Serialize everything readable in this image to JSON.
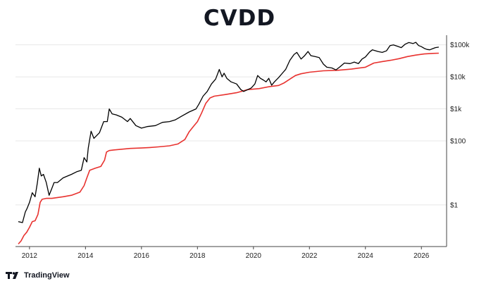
{
  "header": {
    "title": "CVDD"
  },
  "brand": {
    "name": "TradingView"
  },
  "colors": {
    "price": "#000000",
    "cvdd": "#e8322f",
    "grid": "#e8e8e8"
  },
  "chart_data": {
    "type": "line",
    "title": "CVDD",
    "xlabel": "",
    "ylabel": "",
    "y_scale": "log",
    "xlim": [
      2011.5,
      2026.9
    ],
    "ylim": [
      0.05,
      200000
    ],
    "grid": true,
    "y_ticks": [
      {
        "value": 100000,
        "label": "$100k"
      },
      {
        "value": 10000,
        "label": "$10k"
      },
      {
        "value": 1000,
        "label": "$1k"
      },
      {
        "value": 100,
        "label": "$100"
      },
      {
        "value": 1,
        "label": "$1"
      }
    ],
    "x_ticks": [
      {
        "value": 2012,
        "label": "2012"
      },
      {
        "value": 2014,
        "label": "2014"
      },
      {
        "value": 2016,
        "label": "2016"
      },
      {
        "value": 2018,
        "label": "2018"
      },
      {
        "value": 2020,
        "label": "2020"
      },
      {
        "value": 2022,
        "label": "2022"
      },
      {
        "value": 2024,
        "label": "2024"
      },
      {
        "value": 2026,
        "label": "2026"
      }
    ],
    "series": [
      {
        "color": "#000000",
        "points": [
          [
            2011.6,
            0.3
          ],
          [
            2011.75,
            0.28
          ],
          [
            2011.85,
            0.6
          ],
          [
            2011.92,
            0.8
          ],
          [
            2012.0,
            1.2
          ],
          [
            2012.1,
            2.4
          ],
          [
            2012.2,
            1.8
          ],
          [
            2012.28,
            4.8
          ],
          [
            2012.35,
            14
          ],
          [
            2012.42,
            8
          ],
          [
            2012.5,
            9
          ],
          [
            2012.6,
            5
          ],
          [
            2012.7,
            2
          ],
          [
            2012.78,
            3
          ],
          [
            2012.88,
            5
          ],
          [
            2013.0,
            5
          ],
          [
            2013.2,
            7
          ],
          [
            2013.5,
            9
          ],
          [
            2013.7,
            11
          ],
          [
            2013.85,
            12
          ],
          [
            2013.95,
            30
          ],
          [
            2014.05,
            22
          ],
          [
            2014.1,
            60
          ],
          [
            2014.2,
            200
          ],
          [
            2014.3,
            120
          ],
          [
            2014.5,
            180
          ],
          [
            2014.65,
            400
          ],
          [
            2014.78,
            400
          ],
          [
            2014.85,
            1000
          ],
          [
            2014.95,
            700
          ],
          [
            2015.1,
            650
          ],
          [
            2015.3,
            550
          ],
          [
            2015.5,
            400
          ],
          [
            2015.6,
            500
          ],
          [
            2015.8,
            300
          ],
          [
            2016.0,
            250
          ],
          [
            2016.2,
            280
          ],
          [
            2016.5,
            300
          ],
          [
            2016.75,
            380
          ],
          [
            2017.0,
            400
          ],
          [
            2017.2,
            450
          ],
          [
            2017.45,
            600
          ],
          [
            2017.7,
            800
          ],
          [
            2017.95,
            1000
          ],
          [
            2018.05,
            1400
          ],
          [
            2018.2,
            2500
          ],
          [
            2018.35,
            3500
          ],
          [
            2018.5,
            6000
          ],
          [
            2018.65,
            8500
          ],
          [
            2018.78,
            17000
          ],
          [
            2018.88,
            10000
          ],
          [
            2018.95,
            13000
          ],
          [
            2019.05,
            9000
          ],
          [
            2019.2,
            7000
          ],
          [
            2019.4,
            6000
          ],
          [
            2019.55,
            4000
          ],
          [
            2019.65,
            3500
          ],
          [
            2019.8,
            4000
          ],
          [
            2019.92,
            4500
          ],
          [
            2020.05,
            6000
          ],
          [
            2020.15,
            11000
          ],
          [
            2020.25,
            9000
          ],
          [
            2020.35,
            8000
          ],
          [
            2020.45,
            7000
          ],
          [
            2020.55,
            9000
          ],
          [
            2020.65,
            5500
          ],
          [
            2020.75,
            7000
          ],
          [
            2020.9,
            9500
          ],
          [
            2021.0,
            12000
          ],
          [
            2021.15,
            17000
          ],
          [
            2021.3,
            33000
          ],
          [
            2021.45,
            50000
          ],
          [
            2021.55,
            58000
          ],
          [
            2021.7,
            36000
          ],
          [
            2021.82,
            45000
          ],
          [
            2021.95,
            62000
          ],
          [
            2022.05,
            46000
          ],
          [
            2022.2,
            43000
          ],
          [
            2022.35,
            40000
          ],
          [
            2022.5,
            25000
          ],
          [
            2022.62,
            20000
          ],
          [
            2022.8,
            19000
          ],
          [
            2022.95,
            16500
          ],
          [
            2023.1,
            21000
          ],
          [
            2023.25,
            27000
          ],
          [
            2023.45,
            26000
          ],
          [
            2023.6,
            29000
          ],
          [
            2023.75,
            26000
          ],
          [
            2023.88,
            36000
          ],
          [
            2024.0,
            42000
          ],
          [
            2024.15,
            60000
          ],
          [
            2024.25,
            70000
          ],
          [
            2024.45,
            62000
          ],
          [
            2024.6,
            58000
          ],
          [
            2024.75,
            65000
          ],
          [
            2024.88,
            95000
          ],
          [
            2025.0,
            100000
          ],
          [
            2025.15,
            90000
          ],
          [
            2025.28,
            82000
          ],
          [
            2025.42,
            105000
          ],
          [
            2025.55,
            118000
          ],
          [
            2025.7,
            110000
          ],
          [
            2025.8,
            120000
          ],
          [
            2025.9,
            95000
          ],
          [
            2026.0,
            88000
          ],
          [
            2026.1,
            78000
          ],
          [
            2026.2,
            72000
          ],
          [
            2026.3,
            70000
          ],
          [
            2026.4,
            76000
          ],
          [
            2026.5,
            82000
          ],
          [
            2026.62,
            85000
          ]
        ]
      },
      {
        "color": "#e8322f",
        "points": [
          [
            2011.6,
            0.06
          ],
          [
            2011.7,
            0.075
          ],
          [
            2011.8,
            0.11
          ],
          [
            2011.9,
            0.14
          ],
          [
            2012.0,
            0.2
          ],
          [
            2012.1,
            0.3
          ],
          [
            2012.2,
            0.32
          ],
          [
            2012.3,
            0.5
          ],
          [
            2012.38,
            1.2
          ],
          [
            2012.45,
            1.5
          ],
          [
            2012.6,
            1.6
          ],
          [
            2012.8,
            1.6
          ],
          [
            2013.0,
            1.7
          ],
          [
            2013.2,
            1.8
          ],
          [
            2013.5,
            2.0
          ],
          [
            2013.8,
            2.5
          ],
          [
            2013.95,
            4.0
          ],
          [
            2014.05,
            7
          ],
          [
            2014.15,
            12
          ],
          [
            2014.35,
            14
          ],
          [
            2014.55,
            16
          ],
          [
            2014.68,
            25
          ],
          [
            2014.75,
            45
          ],
          [
            2014.85,
            50
          ],
          [
            2015.0,
            52
          ],
          [
            2015.3,
            55
          ],
          [
            2015.6,
            58
          ],
          [
            2016.0,
            60
          ],
          [
            2016.3,
            62
          ],
          [
            2016.6,
            65
          ],
          [
            2017.0,
            70
          ],
          [
            2017.3,
            80
          ],
          [
            2017.55,
            110
          ],
          [
            2017.7,
            190
          ],
          [
            2017.85,
            280
          ],
          [
            2018.0,
            400
          ],
          [
            2018.15,
            750
          ],
          [
            2018.3,
            1500
          ],
          [
            2018.45,
            2200
          ],
          [
            2018.6,
            2500
          ],
          [
            2019.0,
            2800
          ],
          [
            2019.4,
            3200
          ],
          [
            2019.8,
            4000
          ],
          [
            2020.2,
            4300
          ],
          [
            2020.6,
            5000
          ],
          [
            2020.9,
            5400
          ],
          [
            2021.1,
            6500
          ],
          [
            2021.3,
            8500
          ],
          [
            2021.5,
            11000
          ],
          [
            2021.7,
            12500
          ],
          [
            2022.0,
            14000
          ],
          [
            2022.5,
            15500
          ],
          [
            2023.0,
            16000
          ],
          [
            2023.5,
            17500
          ],
          [
            2024.0,
            20000
          ],
          [
            2024.3,
            27000
          ],
          [
            2024.6,
            30000
          ],
          [
            2024.9,
            33000
          ],
          [
            2025.2,
            37000
          ],
          [
            2025.5,
            43000
          ],
          [
            2025.8,
            48000
          ],
          [
            2026.1,
            52000
          ],
          [
            2026.4,
            54000
          ],
          [
            2026.62,
            55000
          ]
        ]
      }
    ]
  }
}
